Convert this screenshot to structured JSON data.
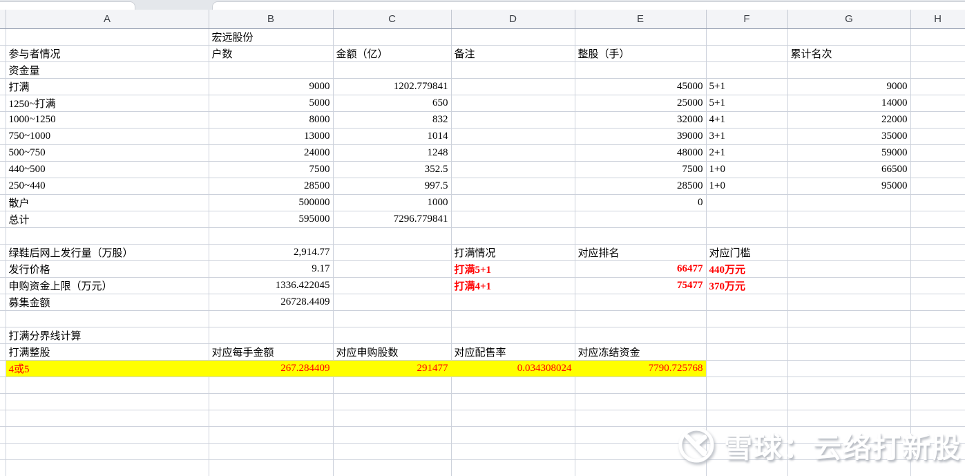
{
  "colors": {
    "grid": "#ccd1db",
    "header_bg": "#f3f4f7",
    "header_border": "#9aa3b5",
    "tabstrip_bg": "#e4e7eb",
    "red": "#ff0000",
    "highlight": "#ffff00"
  },
  "sheet": {
    "column_headers": [
      "A",
      "B",
      "C",
      "D",
      "E",
      "F",
      "G",
      "H"
    ],
    "rows": [
      {
        "cells": [
          {
            "c": 1,
            "v": "宏远股份"
          }
        ]
      },
      {
        "cells": [
          {
            "c": 0,
            "v": "参与者情况"
          },
          {
            "c": 1,
            "v": "户数"
          },
          {
            "c": 2,
            "v": "金额（亿）"
          },
          {
            "c": 3,
            "v": "备注"
          },
          {
            "c": 4,
            "v": "整股（手）"
          },
          {
            "c": 6,
            "v": "累计名次"
          }
        ]
      },
      {
        "cells": [
          {
            "c": 0,
            "v": "资金量"
          }
        ]
      },
      {
        "cells": [
          {
            "c": 0,
            "v": "打满"
          },
          {
            "c": 1,
            "v": "9000",
            "a": "r"
          },
          {
            "c": 2,
            "v": "1202.779841",
            "a": "r"
          },
          {
            "c": 4,
            "v": "45000",
            "a": "r"
          },
          {
            "c": 5,
            "v": "5+1"
          },
          {
            "c": 6,
            "v": "9000",
            "a": "r"
          }
        ]
      },
      {
        "cells": [
          {
            "c": 0,
            "v": "1250~打满"
          },
          {
            "c": 1,
            "v": "5000",
            "a": "r"
          },
          {
            "c": 2,
            "v": "650",
            "a": "r"
          },
          {
            "c": 4,
            "v": "25000",
            "a": "r"
          },
          {
            "c": 5,
            "v": "5+1"
          },
          {
            "c": 6,
            "v": "14000",
            "a": "r"
          }
        ]
      },
      {
        "cells": [
          {
            "c": 0,
            "v": "1000~1250"
          },
          {
            "c": 1,
            "v": "8000",
            "a": "r"
          },
          {
            "c": 2,
            "v": "832",
            "a": "r"
          },
          {
            "c": 4,
            "v": "32000",
            "a": "r"
          },
          {
            "c": 5,
            "v": "4+1"
          },
          {
            "c": 6,
            "v": "22000",
            "a": "r"
          }
        ]
      },
      {
        "cells": [
          {
            "c": 0,
            "v": "750~1000"
          },
          {
            "c": 1,
            "v": "13000",
            "a": "r"
          },
          {
            "c": 2,
            "v": "1014",
            "a": "r"
          },
          {
            "c": 4,
            "v": "39000",
            "a": "r"
          },
          {
            "c": 5,
            "v": "3+1"
          },
          {
            "c": 6,
            "v": "35000",
            "a": "r"
          }
        ]
      },
      {
        "cells": [
          {
            "c": 0,
            "v": "500~750"
          },
          {
            "c": 1,
            "v": "24000",
            "a": "r"
          },
          {
            "c": 2,
            "v": "1248",
            "a": "r"
          },
          {
            "c": 4,
            "v": "48000",
            "a": "r"
          },
          {
            "c": 5,
            "v": "2+1"
          },
          {
            "c": 6,
            "v": "59000",
            "a": "r"
          }
        ]
      },
      {
        "cells": [
          {
            "c": 0,
            "v": "440~500"
          },
          {
            "c": 1,
            "v": "7500",
            "a": "r"
          },
          {
            "c": 2,
            "v": "352.5",
            "a": "r"
          },
          {
            "c": 4,
            "v": "7500",
            "a": "r"
          },
          {
            "c": 5,
            "v": "1+0"
          },
          {
            "c": 6,
            "v": "66500",
            "a": "r"
          }
        ]
      },
      {
        "cells": [
          {
            "c": 0,
            "v": "250~440"
          },
          {
            "c": 1,
            "v": "28500",
            "a": "r"
          },
          {
            "c": 2,
            "v": "997.5",
            "a": "r"
          },
          {
            "c": 4,
            "v": "28500",
            "a": "r"
          },
          {
            "c": 5,
            "v": "1+0"
          },
          {
            "c": 6,
            "v": "95000",
            "a": "r"
          }
        ]
      },
      {
        "cells": [
          {
            "c": 0,
            "v": "散户"
          },
          {
            "c": 1,
            "v": "500000",
            "a": "r"
          },
          {
            "c": 2,
            "v": "1000",
            "a": "r"
          },
          {
            "c": 4,
            "v": "0",
            "a": "r"
          }
        ]
      },
      {
        "cells": [
          {
            "c": 0,
            "v": "总计"
          },
          {
            "c": 1,
            "v": "595000",
            "a": "r"
          },
          {
            "c": 2,
            "v": "7296.779841",
            "a": "r"
          }
        ]
      },
      {
        "cells": []
      },
      {
        "cells": [
          {
            "c": 0,
            "v": "绿鞋后网上发行量（万股）"
          },
          {
            "c": 1,
            "v": "2,914.77",
            "a": "r"
          },
          {
            "c": 3,
            "v": "打满情况"
          },
          {
            "c": 4,
            "v": "对应排名"
          },
          {
            "c": 5,
            "v": "对应门槛"
          }
        ]
      },
      {
        "cells": [
          {
            "c": 0,
            "v": "发行价格"
          },
          {
            "c": 1,
            "v": "9.17",
            "a": "r"
          },
          {
            "c": 3,
            "v": "打满5+1",
            "s": "rb"
          },
          {
            "c": 4,
            "v": "66477",
            "a": "r",
            "s": "rb"
          },
          {
            "c": 5,
            "v": "440万元",
            "s": "rb"
          }
        ]
      },
      {
        "cells": [
          {
            "c": 0,
            "v": "申购资金上限（万元）"
          },
          {
            "c": 1,
            "v": "1336.422045",
            "a": "r"
          },
          {
            "c": 3,
            "v": "打满4+1",
            "s": "rb"
          },
          {
            "c": 4,
            "v": "75477",
            "a": "r",
            "s": "rb"
          },
          {
            "c": 5,
            "v": "370万元",
            "s": "rb"
          }
        ]
      },
      {
        "cells": [
          {
            "c": 0,
            "v": "募集金额"
          },
          {
            "c": 1,
            "v": "26728.4409",
            "a": "r"
          }
        ]
      },
      {
        "cells": []
      },
      {
        "cells": [
          {
            "c": 0,
            "v": "打满分界线计算"
          }
        ]
      },
      {
        "cells": [
          {
            "c": 0,
            "v": "打满整股"
          },
          {
            "c": 1,
            "v": "对应每手金额"
          },
          {
            "c": 2,
            "v": "对应申购股数"
          },
          {
            "c": 3,
            "v": "对应配售率"
          },
          {
            "c": 4,
            "v": "对应冻结资金"
          }
        ]
      },
      {
        "hl": true,
        "cells": [
          {
            "c": 0,
            "v": "4或5",
            "s": "red"
          },
          {
            "c": 1,
            "v": "267.284409",
            "a": "r",
            "s": "red"
          },
          {
            "c": 2,
            "v": "291477",
            "a": "r",
            "s": "red"
          },
          {
            "c": 3,
            "v": "0.034308024",
            "a": "r",
            "s": "red"
          },
          {
            "c": 4,
            "v": "7790.725768",
            "a": "r",
            "s": "red"
          }
        ]
      },
      {
        "cells": []
      },
      {
        "cells": []
      },
      {
        "cells": []
      },
      {
        "cells": []
      },
      {
        "cells": []
      },
      {
        "cells": []
      }
    ]
  },
  "watermark": {
    "text": "雪球：云络打新股",
    "logo": "xueqiu-logo"
  }
}
